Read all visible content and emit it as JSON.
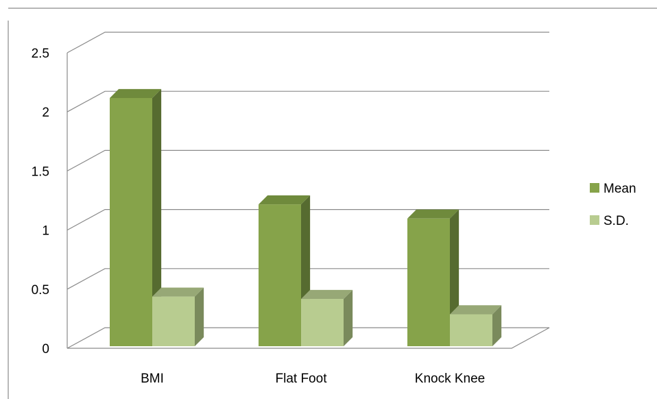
{
  "chart_data": {
    "type": "bar",
    "categories": [
      "BMI",
      "Flat Foot",
      "Knock Knee"
    ],
    "series": [
      {
        "name": "Mean",
        "values": [
          2.1,
          1.2,
          1.08
        ],
        "color": "#86a34a",
        "side_color": "#566b30",
        "top_color": "#6f8a3c"
      },
      {
        "name": "S.D.",
        "values": [
          0.42,
          0.4,
          0.27
        ],
        "color": "#b8cc90",
        "side_color": "#7a8a5c",
        "top_color": "#97a876"
      }
    ],
    "ylim": [
      0,
      2.5
    ],
    "y_ticks": [
      "0",
      "0.5",
      "1",
      "1.5",
      "2",
      "2.5"
    ],
    "grid": true,
    "legend_position": "right",
    "projection": "3d-column",
    "title": "",
    "xlabel": "",
    "ylabel": ""
  }
}
